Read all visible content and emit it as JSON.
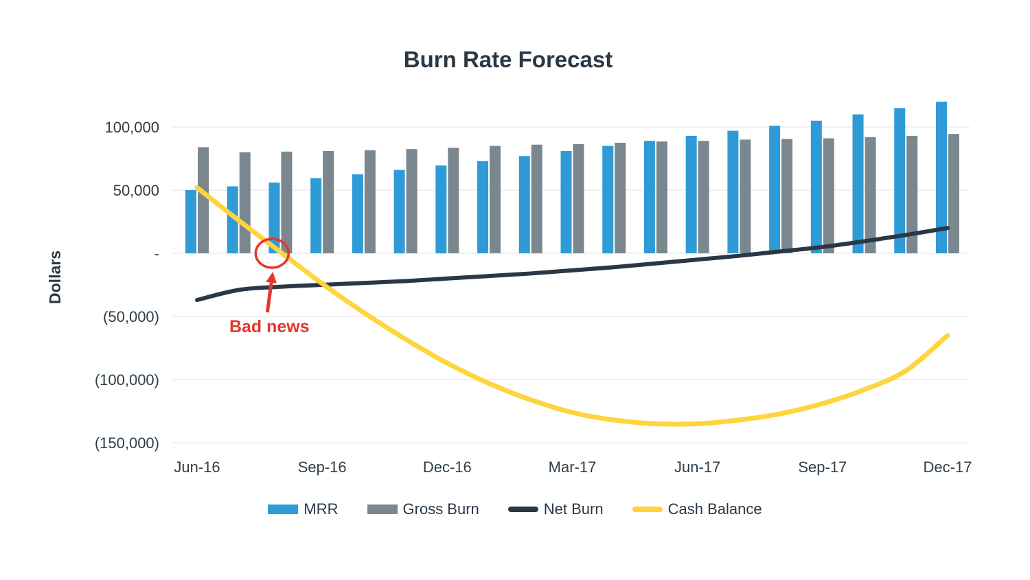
{
  "chart_data": {
    "type": "combo",
    "title": "Burn Rate Forecast",
    "ylabel": "Dollars",
    "x": [
      "Jun-16",
      "Jul-16",
      "Aug-16",
      "Sep-16",
      "Oct-16",
      "Nov-16",
      "Dec-16",
      "Jan-17",
      "Feb-17",
      "Mar-17",
      "Apr-17",
      "May-17",
      "Jun-17",
      "Jul-17",
      "Aug-17",
      "Sep-17",
      "Oct-17",
      "Nov-17",
      "Dec-17"
    ],
    "x_label_every": 3,
    "y_ticks": [
      100000,
      50000,
      0,
      -50000,
      -100000,
      -150000
    ],
    "y_tick_labels": [
      "100,000",
      "50,000",
      "-",
      "(50,000)",
      "(100,000)",
      "(150,000)"
    ],
    "ylim": [
      -150000,
      125000
    ],
    "grid": true,
    "legend_position": "bottom-center",
    "series": [
      {
        "name": "MRR",
        "type": "bar",
        "color": "#2E9BD6",
        "values": [
          50000,
          53000,
          56000,
          59500,
          62500,
          66000,
          69500,
          73000,
          77000,
          81000,
          85000,
          89000,
          93000,
          97000,
          101000,
          105000,
          110000,
          115000,
          120000
        ]
      },
      {
        "name": "Gross Burn",
        "type": "bar",
        "color": "#7A878E",
        "values": [
          84000,
          80000,
          80500,
          81000,
          81500,
          82500,
          83500,
          85000,
          86000,
          86500,
          87500,
          88500,
          89000,
          90000,
          90500,
          91000,
          92000,
          93000,
          94500
        ]
      },
      {
        "name": "Net Burn",
        "type": "line",
        "color": "#2A3744",
        "stroke_width": 6,
        "values": [
          -37000,
          -29000,
          -26500,
          -25000,
          -23500,
          -22000,
          -20000,
          -18000,
          -16000,
          -13500,
          -11000,
          -8000,
          -5000,
          -2000,
          1500,
          5000,
          9500,
          14500,
          20000
        ]
      },
      {
        "name": "Cash Balance",
        "type": "line",
        "color": "#FFD43C",
        "stroke_width": 7,
        "values": [
          52000,
          26000,
          1000,
          -24000,
          -47000,
          -68000,
          -87000,
          -103000,
          -116000,
          -126000,
          -132000,
          -135000,
          -135000,
          -132000,
          -127000,
          -119000,
          -108000,
          -93000,
          -65000
        ]
      }
    ],
    "annotation": {
      "label": "Bad news",
      "color": "#E5372B",
      "x_index": 1.8,
      "y_value": 0
    }
  }
}
